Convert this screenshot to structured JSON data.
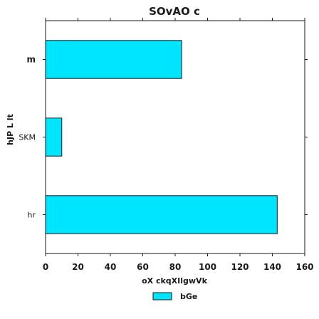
{
  "chart_data": {
    "type": "bar",
    "orientation": "horizontal",
    "title": "SOvAO c",
    "xlabel": "oX ckqXIlgwVk",
    "ylabel": "hJP L lt",
    "categories": [
      "hr",
      "SKM",
      "m"
    ],
    "bold_categories": [
      "m"
    ],
    "series": [
      {
        "name": "bGe",
        "values": [
          143,
          10,
          84
        ],
        "color": "#00e5ff"
      }
    ],
    "xlim": [
      0,
      160
    ],
    "xticks": [
      0,
      20,
      40,
      60,
      80,
      100,
      120,
      140,
      160
    ],
    "grid": false,
    "legend_position": "bottom-center",
    "edge_color": "#1a1a1a"
  }
}
